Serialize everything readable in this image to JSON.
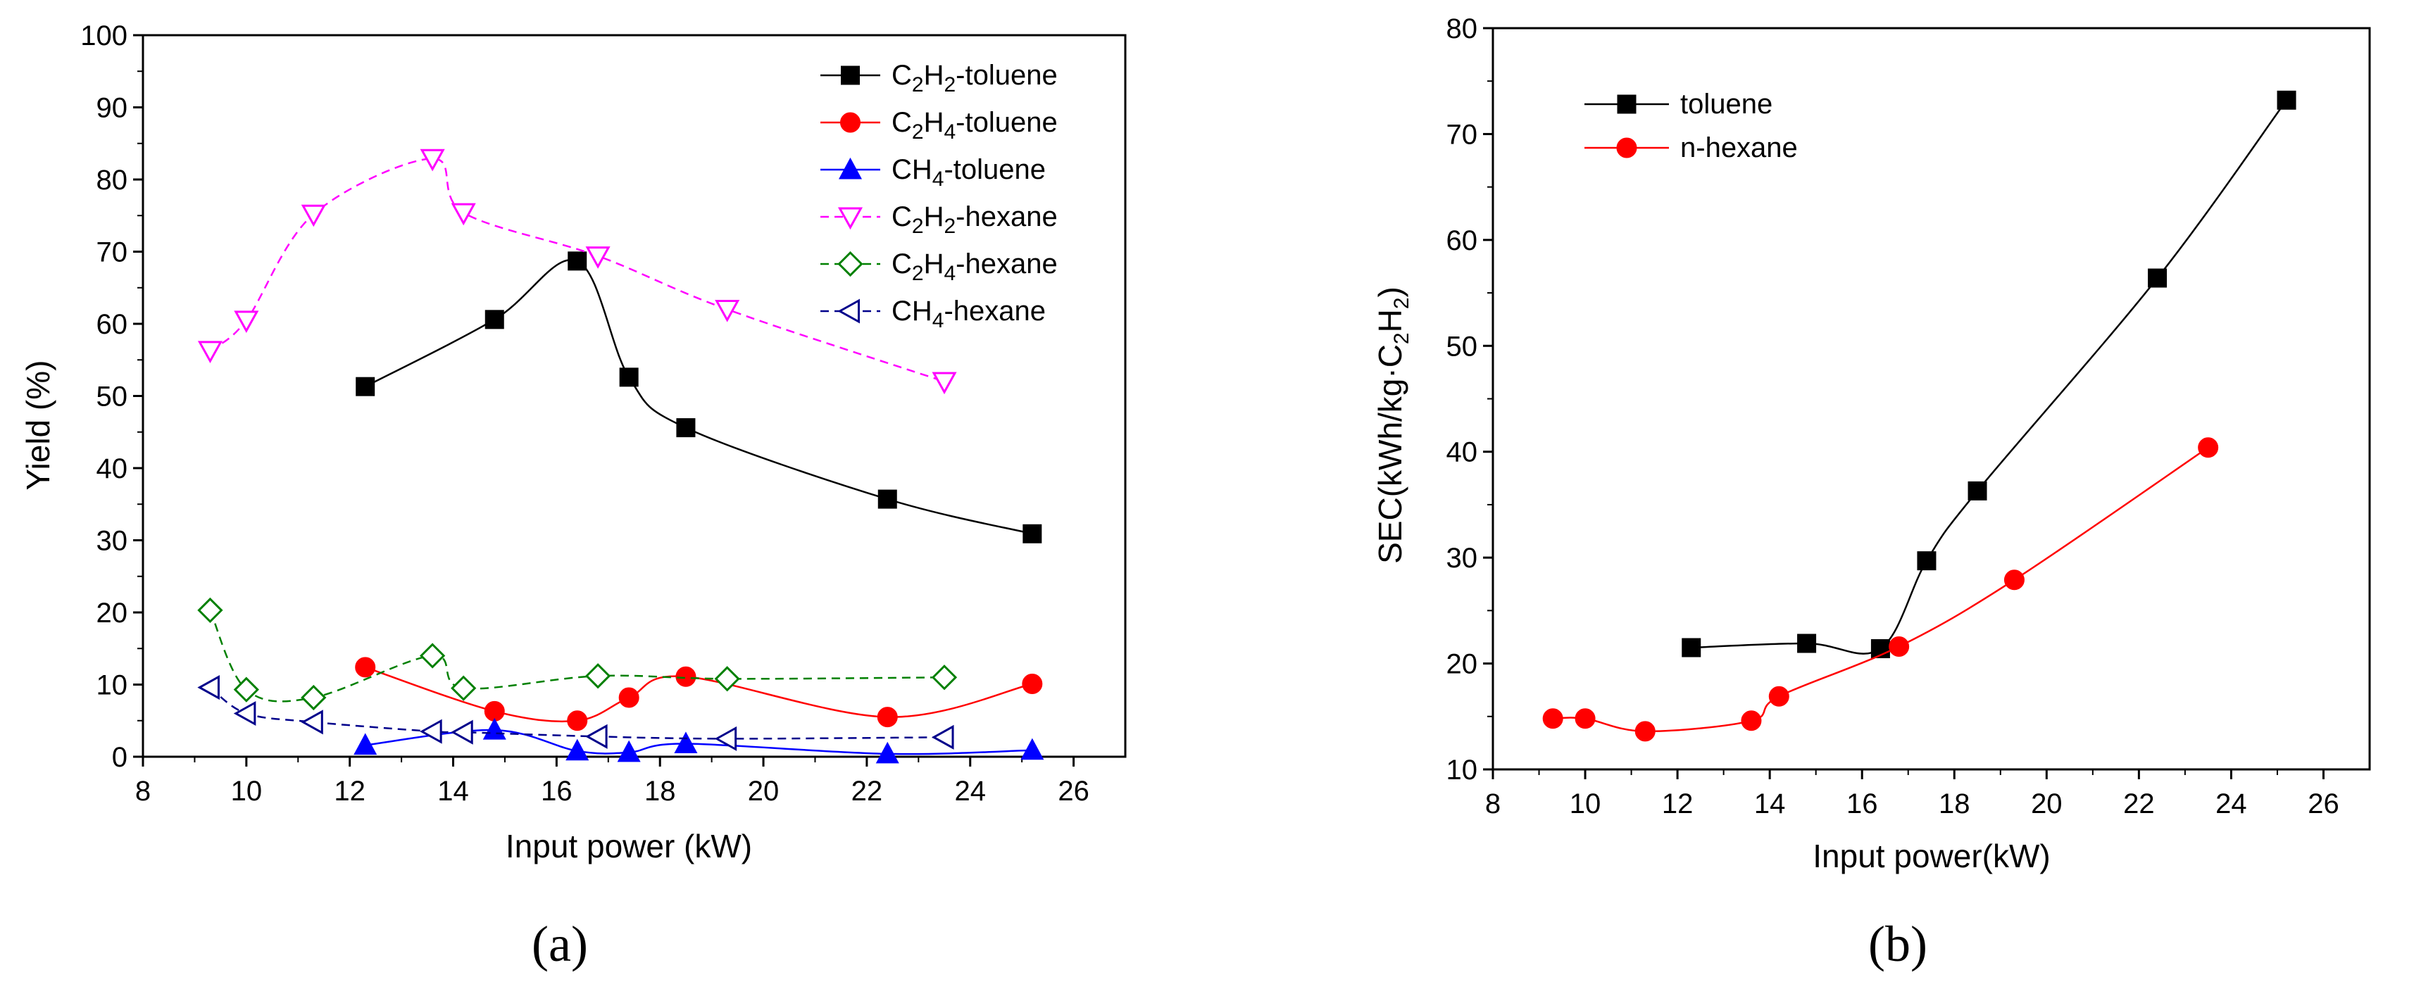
{
  "chart_data": [
    {
      "type": "line",
      "panel_label": "(a)",
      "xlabel": "Input power (kW)",
      "ylabel": "Yield (%)",
      "xlim": [
        8,
        27
      ],
      "ylim": [
        0,
        100
      ],
      "xticks": [
        8,
        10,
        12,
        14,
        16,
        18,
        20,
        22,
        24,
        26
      ],
      "yticks": [
        0,
        10,
        20,
        30,
        40,
        50,
        60,
        70,
        80,
        90,
        100
      ],
      "grid": false,
      "legend_position": "top-right",
      "series": [
        {
          "name": "C2H2-toluene",
          "legend": {
            "base": "C",
            "s1": "2",
            "mid": "H",
            "s2": "2",
            "tail": "-toluene"
          },
          "color": "#000000",
          "marker": "square",
          "filled": true,
          "dashed": false,
          "x": [
            12.3,
            14.8,
            16.4,
            17.4,
            18.5,
            22.4,
            25.2
          ],
          "y": [
            51.3,
            60.6,
            68.7,
            52.6,
            45.6,
            35.7,
            30.9
          ]
        },
        {
          "name": "C2H4-toluene",
          "legend": {
            "base": "C",
            "s1": "2",
            "mid": "H",
            "s2": "4",
            "tail": "-toluene"
          },
          "color": "#ff0000",
          "marker": "circle",
          "filled": true,
          "dashed": false,
          "x": [
            12.3,
            14.8,
            16.4,
            17.4,
            18.5,
            22.4,
            25.2
          ],
          "y": [
            12.4,
            6.3,
            5.0,
            8.2,
            11.1,
            5.5,
            10.1
          ]
        },
        {
          "name": "CH4-toluene",
          "legend": {
            "base": "CH",
            "s1": "4",
            "mid": "",
            "s2": "",
            "tail": "-toluene"
          },
          "color": "#0000ff",
          "marker": "triangle-up",
          "filled": true,
          "dashed": false,
          "x": [
            12.3,
            14.8,
            16.4,
            17.4,
            18.5,
            22.4,
            25.2
          ],
          "y": [
            1.6,
            3.7,
            0.8,
            0.6,
            1.8,
            0.4,
            0.9
          ]
        },
        {
          "name": "C2H2-hexane",
          "legend": {
            "base": "C",
            "s1": "2",
            "mid": "H",
            "s2": "2",
            "tail": "-hexane"
          },
          "color": "#ff00ff",
          "marker": "triangle-down",
          "filled": false,
          "dashed": true,
          "x": [
            9.3,
            10.0,
            11.3,
            13.6,
            14.2,
            16.8,
            19.3,
            23.5
          ],
          "y": [
            56.3,
            60.5,
            75.2,
            82.9,
            75.4,
            69.4,
            62.0,
            52.0
          ]
        },
        {
          "name": "C2H4-hexane",
          "legend": {
            "base": "C",
            "s1": "2",
            "mid": "H",
            "s2": "4",
            "tail": "-hexane"
          },
          "color": "#008000",
          "marker": "diamond",
          "filled": false,
          "dashed": true,
          "x": [
            9.3,
            10.0,
            11.3,
            13.6,
            14.2,
            16.8,
            19.3,
            23.5
          ],
          "y": [
            20.3,
            9.3,
            8.2,
            14.0,
            9.5,
            11.2,
            10.8,
            11.0
          ]
        },
        {
          "name": "CH4-hexane",
          "legend": {
            "base": "CH",
            "s1": "4",
            "mid": "",
            "s2": "",
            "tail": "-hexane"
          },
          "color": "#00008b",
          "marker": "triangle-left",
          "filled": false,
          "dashed": true,
          "x": [
            9.3,
            10.0,
            11.3,
            13.6,
            14.2,
            16.8,
            19.3,
            23.5
          ],
          "y": [
            9.6,
            6.0,
            4.8,
            3.5,
            3.4,
            2.8,
            2.5,
            2.7
          ]
        }
      ]
    },
    {
      "type": "line",
      "panel_label": "(b)",
      "xlabel": "Input power(kW)",
      "ylabel": "SEC(kWh/kg·C2H2)",
      "ylabel_parts": {
        "base": "SEC(kWh/kg·C",
        "s1": "2",
        "mid": "H",
        "s2": "2",
        "tail": ")"
      },
      "xlim": [
        8,
        27
      ],
      "ylim": [
        10,
        80
      ],
      "xticks": [
        8,
        10,
        12,
        14,
        16,
        18,
        20,
        22,
        24,
        26
      ],
      "yticks": [
        10,
        20,
        30,
        40,
        50,
        60,
        70,
        80
      ],
      "grid": false,
      "legend_position": "top-left",
      "series": [
        {
          "name": "toluene",
          "color": "#000000",
          "marker": "square",
          "filled": true,
          "dashed": false,
          "x": [
            12.3,
            14.8,
            16.4,
            17.4,
            18.5,
            22.4,
            25.2
          ],
          "y": [
            21.5,
            21.9,
            21.4,
            29.7,
            36.3,
            56.4,
            73.2
          ]
        },
        {
          "name": "n-hexane",
          "color": "#ff0000",
          "marker": "circle",
          "filled": true,
          "dashed": false,
          "x": [
            9.3,
            10.0,
            11.3,
            13.6,
            14.2,
            16.8,
            19.3,
            23.5
          ],
          "y": [
            14.8,
            14.8,
            13.6,
            14.6,
            16.9,
            21.6,
            27.9,
            40.4
          ]
        }
      ]
    }
  ]
}
